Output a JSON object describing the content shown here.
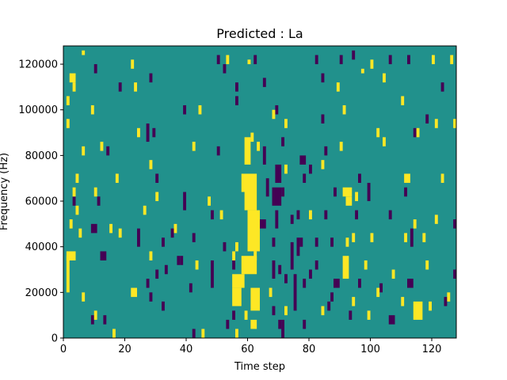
{
  "chart_data": {
    "type": "heatmap",
    "title": "Predicted : La",
    "xlabel": "Time step",
    "ylabel": "Frequency (Hz)",
    "xlim": [
      0,
      128
    ],
    "ylim": [
      0,
      128000
    ],
    "x_ticks": [
      0,
      20,
      40,
      60,
      80,
      100,
      120
    ],
    "x_tick_labels": [
      "0",
      "20",
      "40",
      "60",
      "80",
      "100",
      "120"
    ],
    "y_ticks": [
      0,
      20000,
      40000,
      60000,
      80000,
      100000,
      120000
    ],
    "y_tick_labels": [
      "0",
      "20000",
      "40000",
      "60000",
      "80000",
      "100000",
      "120000"
    ],
    "colormap": "viridis",
    "colors": {
      "background": "#21918c",
      "low": "#440154",
      "high": "#fde725"
    },
    "value_levels": {
      "low": 0,
      "background": 0.5,
      "high": 1
    },
    "grid": false,
    "cells_high": [
      [
        6,
        124000,
        1,
        2000
      ],
      [
        22,
        118000,
        1,
        4000
      ],
      [
        2,
        112000,
        2,
        4000
      ],
      [
        53,
        120000,
        1,
        4000
      ],
      [
        60,
        120000,
        1,
        2000
      ],
      [
        100,
        118000,
        1,
        4000
      ],
      [
        120,
        120000,
        1,
        4000
      ],
      [
        126,
        120000,
        1,
        4000
      ],
      [
        97,
        116000,
        1,
        2000
      ],
      [
        104,
        112000,
        1,
        4000
      ],
      [
        3,
        108000,
        1,
        4000
      ],
      [
        23,
        108000,
        1,
        4000
      ],
      [
        89,
        108000,
        1,
        4000
      ],
      [
        1,
        102000,
        1,
        4000
      ],
      [
        110,
        102000,
        1,
        4000
      ],
      [
        9,
        98000,
        1,
        4000
      ],
      [
        44,
        98000,
        1,
        4000
      ],
      [
        91,
        98000,
        1,
        4000
      ],
      [
        68,
        96000,
        1,
        4000
      ],
      [
        1,
        92000,
        1,
        4000
      ],
      [
        72,
        92000,
        1,
        4000
      ],
      [
        121,
        92000,
        1,
        4000
      ],
      [
        127,
        92000,
        1,
        4000
      ],
      [
        24,
        88000,
        1,
        4000
      ],
      [
        102,
        88000,
        1,
        4000
      ],
      [
        115,
        88000,
        1,
        4000
      ],
      [
        61,
        86000,
        1,
        4000
      ],
      [
        104,
        84000,
        1,
        4000
      ],
      [
        12,
        82000,
        1,
        4000
      ],
      [
        42,
        82000,
        1,
        4000
      ],
      [
        63,
        82000,
        1,
        4000
      ],
      [
        90,
        82000,
        1,
        4000
      ],
      [
        6,
        80000,
        1,
        4000
      ],
      [
        28,
        74000,
        1,
        4000
      ],
      [
        72,
        72000,
        1,
        4000
      ],
      [
        84,
        74000,
        1,
        4000
      ],
      [
        4,
        68000,
        1,
        4000
      ],
      [
        17,
        68000,
        1,
        4000
      ],
      [
        111,
        68000,
        2,
        4000
      ],
      [
        123,
        68000,
        1,
        4000
      ],
      [
        59,
        76000,
        2,
        12000
      ],
      [
        58,
        64000,
        5,
        8000
      ],
      [
        59,
        56000,
        4,
        8000
      ],
      [
        60,
        38000,
        4,
        18000
      ],
      [
        91,
        62000,
        3,
        4000
      ],
      [
        92,
        58000,
        2,
        4000
      ],
      [
        3,
        62000,
        1,
        4000
      ],
      [
        10,
        62000,
        1,
        4000
      ],
      [
        30,
        60000,
        1,
        4000
      ],
      [
        95,
        60000,
        1,
        4000
      ],
      [
        47,
        58000,
        1,
        4000
      ],
      [
        4,
        54000,
        1,
        4000
      ],
      [
        26,
        54000,
        1,
        4000
      ],
      [
        51,
        52000,
        1,
        4000
      ],
      [
        80,
        52000,
        1,
        4000
      ],
      [
        121,
        50000,
        1,
        4000
      ],
      [
        2,
        48000,
        1,
        4000
      ],
      [
        15,
        46000,
        1,
        4000
      ],
      [
        36,
        46000,
        1,
        4000
      ],
      [
        114,
        48000,
        1,
        4000
      ],
      [
        5,
        44000,
        1,
        4000
      ],
      [
        18,
        44000,
        1,
        4000
      ],
      [
        94,
        42000,
        1,
        4000
      ],
      [
        100,
        42000,
        1,
        4000
      ],
      [
        111,
        42000,
        1,
        4000
      ],
      [
        117,
        42000,
        1,
        4000
      ],
      [
        92,
        40000,
        1,
        4000
      ],
      [
        56,
        38000,
        1,
        4000
      ],
      [
        1,
        34000,
        3,
        4000
      ],
      [
        28,
        34000,
        1,
        4000
      ],
      [
        55,
        34000,
        1,
        4000
      ],
      [
        58,
        28000,
        5,
        8000
      ],
      [
        62,
        34000,
        1,
        4000
      ],
      [
        1,
        20000,
        1,
        16000
      ],
      [
        91,
        26000,
        2,
        10000
      ],
      [
        43,
        30000,
        1,
        4000
      ],
      [
        98,
        30000,
        1,
        4000
      ],
      [
        118,
        30000,
        1,
        4000
      ],
      [
        55,
        22000,
        4,
        6000
      ],
      [
        55,
        14000,
        3,
        8000
      ],
      [
        61,
        12000,
        3,
        10000
      ],
      [
        22,
        18000,
        2,
        4000
      ],
      [
        59,
        8000,
        1,
        4000
      ],
      [
        61,
        4000,
        2,
        4000
      ],
      [
        102,
        18000,
        1,
        4000
      ],
      [
        107,
        26000,
        1,
        4000
      ],
      [
        114,
        8000,
        3,
        8000
      ],
      [
        6,
        16000,
        1,
        4000
      ],
      [
        94,
        14000,
        1,
        4000
      ],
      [
        119,
        12000,
        1,
        4000
      ],
      [
        110,
        14000,
        1,
        4000
      ],
      [
        16,
        0,
        1,
        4000
      ],
      [
        45,
        0,
        1,
        4000
      ],
      [
        56,
        0,
        1,
        4000
      ],
      [
        10,
        8000,
        1,
        4000
      ],
      [
        99,
        8000,
        1,
        4000
      ],
      [
        125,
        16000,
        1,
        4000
      ],
      [
        67,
        18000,
        1,
        4000
      ],
      [
        72,
        10000,
        1,
        4000
      ],
      [
        84,
        10000,
        1,
        4000
      ]
    ],
    "cells_low": [
      [
        10,
        116000,
        1,
        4000
      ],
      [
        50,
        120000,
        1,
        4000
      ],
      [
        52,
        116000,
        1,
        4000
      ],
      [
        82,
        120000,
        1,
        4000
      ],
      [
        106,
        120000,
        1,
        4000
      ],
      [
        112,
        120000,
        1,
        4000
      ],
      [
        84,
        112000,
        1,
        4000
      ],
      [
        94,
        122000,
        1,
        4000
      ],
      [
        18,
        108000,
        1,
        4000
      ],
      [
        28,
        112000,
        1,
        4000
      ],
      [
        56,
        108000,
        1,
        4000
      ],
      [
        123,
        108000,
        1,
        4000
      ],
      [
        56,
        102000,
        1,
        4000
      ],
      [
        39,
        98000,
        1,
        4000
      ],
      [
        69,
        98000,
        1,
        4000
      ],
      [
        118,
        94000,
        1,
        4000
      ],
      [
        84,
        94000,
        1,
        4000
      ],
      [
        27,
        86000,
        1,
        8000
      ],
      [
        29,
        88000,
        1,
        4000
      ],
      [
        114,
        88000,
        1,
        4000
      ],
      [
        50,
        80000,
        1,
        4000
      ],
      [
        85,
        80000,
        1,
        4000
      ],
      [
        71,
        84000,
        1,
        4000
      ],
      [
        14,
        80000,
        1,
        4000
      ],
      [
        65,
        76000,
        1,
        8000
      ],
      [
        77,
        76000,
        2,
        4000
      ],
      [
        69,
        68000,
        2,
        8000
      ],
      [
        78,
        68000,
        1,
        4000
      ],
      [
        80,
        72000,
        1,
        4000
      ],
      [
        30,
        68000,
        1,
        4000
      ],
      [
        96,
        68000,
        1,
        4000
      ],
      [
        111,
        62000,
        1,
        4000
      ],
      [
        66,
        62000,
        1,
        8000
      ],
      [
        68,
        58000,
        3,
        8000
      ],
      [
        71,
        62000,
        1,
        4000
      ],
      [
        99,
        60000,
        1,
        8000
      ],
      [
        88,
        62000,
        1,
        4000
      ],
      [
        3,
        58000,
        1,
        4000
      ],
      [
        11,
        58000,
        1,
        4000
      ],
      [
        39,
        56000,
        1,
        4000
      ],
      [
        48,
        52000,
        1,
        4000
      ],
      [
        69,
        48000,
        1,
        8000
      ],
      [
        74,
        50000,
        1,
        4000
      ],
      [
        76,
        52000,
        1,
        4000
      ],
      [
        85,
        52000,
        1,
        4000
      ],
      [
        95,
        52000,
        1,
        4000
      ],
      [
        106,
        52000,
        1,
        4000
      ],
      [
        127,
        48000,
        1,
        4000
      ],
      [
        9,
        46000,
        2,
        4000
      ],
      [
        24,
        40000,
        1,
        8000
      ],
      [
        32,
        40000,
        1,
        4000
      ],
      [
        35,
        44000,
        1,
        4000
      ],
      [
        42,
        42000,
        1,
        4000
      ],
      [
        52,
        38000,
        1,
        4000
      ],
      [
        63,
        38000,
        1,
        4000
      ],
      [
        68,
        40000,
        1,
        4000
      ],
      [
        76,
        36000,
        1,
        8000
      ],
      [
        77,
        40000,
        1,
        4000
      ],
      [
        82,
        40000,
        1,
        4000
      ],
      [
        87,
        40000,
        1,
        4000
      ],
      [
        113,
        40000,
        1,
        8000
      ],
      [
        12,
        34000,
        2,
        4000
      ],
      [
        37,
        32000,
        1,
        4000
      ],
      [
        74,
        30000,
        1,
        12000
      ],
      [
        70,
        28000,
        1,
        4000
      ],
      [
        68,
        26000,
        1,
        8000
      ],
      [
        80,
        26000,
        1,
        4000
      ],
      [
        33,
        28000,
        1,
        4000
      ],
      [
        27,
        22000,
        1,
        4000
      ],
      [
        30,
        26000,
        1,
        4000
      ],
      [
        48,
        22000,
        1,
        12000
      ],
      [
        72,
        24000,
        1,
        4000
      ],
      [
        78,
        22000,
        1,
        4000
      ],
      [
        88,
        22000,
        2,
        4000
      ],
      [
        96,
        22000,
        1,
        4000
      ],
      [
        112,
        22000,
        2,
        4000
      ],
      [
        127,
        26000,
        1,
        4000
      ],
      [
        28,
        16000,
        1,
        4000
      ],
      [
        75,
        12000,
        1,
        16000
      ],
      [
        68,
        10000,
        1,
        4000
      ],
      [
        55,
        8000,
        1,
        4000
      ],
      [
        32,
        12000,
        1,
        4000
      ],
      [
        9,
        6000,
        1,
        4000
      ],
      [
        13,
        6000,
        1,
        4000
      ],
      [
        53,
        4000,
        1,
        4000
      ],
      [
        78,
        4000,
        1,
        4000
      ],
      [
        93,
        8000,
        1,
        4000
      ],
      [
        106,
        6000,
        2,
        4000
      ],
      [
        70,
        4000,
        1,
        4000
      ],
      [
        71,
        0,
        1,
        8000
      ],
      [
        42,
        0,
        1,
        4000
      ],
      [
        87,
        16000,
        1,
        4000
      ],
      [
        103,
        20000,
        1,
        4000
      ],
      [
        124,
        14000,
        1,
        4000
      ],
      [
        86,
        12000,
        1,
        4000
      ],
      [
        55,
        30000,
        1,
        4000
      ],
      [
        64,
        48000,
        2,
        4000
      ],
      [
        82,
        30000,
        1,
        4000
      ],
      [
        39,
        60000,
        1,
        4000
      ],
      [
        38,
        32000,
        1,
        4000
      ],
      [
        41,
        20000,
        1,
        4000
      ],
      [
        62,
        120000,
        1,
        4000
      ],
      [
        65,
        110000,
        1,
        4000
      ],
      [
        90,
        120000,
        1,
        4000
      ]
    ]
  }
}
